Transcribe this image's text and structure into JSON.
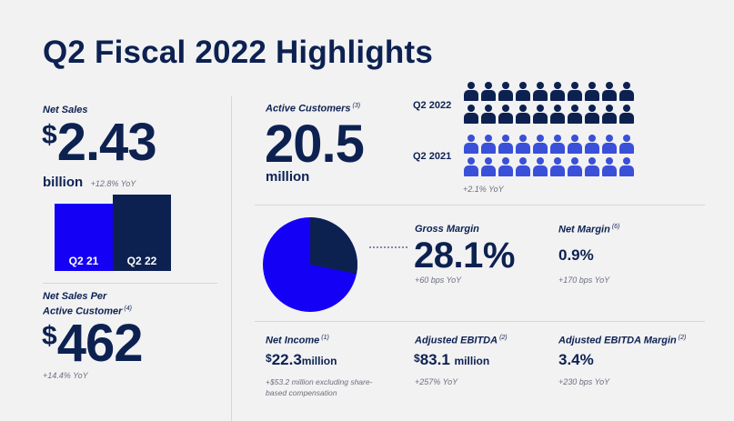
{
  "title": "Q2 Fiscal 2022 Highlights",
  "net_sales": {
    "label": "Net Sales",
    "currency": "$",
    "value": "2.43",
    "unit": "billion",
    "yoy": "+12.8% YoY"
  },
  "chart_data": {
    "type": "bar",
    "categories": [
      "Q2 21",
      "Q2 22"
    ],
    "values": [
      2.15,
      2.43
    ],
    "colors": [
      "#1400f5",
      "#0d2151"
    ]
  },
  "sales_per_customer": {
    "label_line1": "Net Sales Per",
    "label_line2": "Active Customer",
    "footnote": "(4)",
    "currency": "$",
    "value": "462",
    "yoy": "+14.4% YoY"
  },
  "active_customers": {
    "label": "Active Customers",
    "footnote": "(3)",
    "value": "20.5",
    "unit": "million",
    "row_label_2022": "Q2 2022",
    "row_label_2021": "Q2 2021",
    "yoy": "+2.1% YoY",
    "color_2022": "#0d2151",
    "color_2021": "#3a50d9"
  },
  "gross_margin": {
    "label": "Gross Margin",
    "value": "28.1%",
    "yoy": "+60 bps YoY",
    "pie_fraction": 0.281,
    "color_slice": "#0d2151",
    "color_rest": "#1400f5"
  },
  "net_margin": {
    "label": "Net Margin",
    "footnote": "(6)",
    "value": "0.9%",
    "yoy": "+170 bps YoY"
  },
  "net_income": {
    "label": "Net Income",
    "footnote": "(1)",
    "currency": "$",
    "value": "22.3",
    "unit": "million",
    "note_line1": "+$53.2 million excluding share-",
    "note_line2": "based compensation"
  },
  "adj_ebitda": {
    "label": "Adjusted EBITDA",
    "footnote": "(2)",
    "currency": "$",
    "value": "83.1",
    "unit": "million",
    "yoy": "+257% YoY"
  },
  "adj_ebitda_margin": {
    "label": "Adjusted EBITDA Margin",
    "footnote": "(2)",
    "value": "3.4%",
    "yoy": "+230 bps YoY"
  }
}
